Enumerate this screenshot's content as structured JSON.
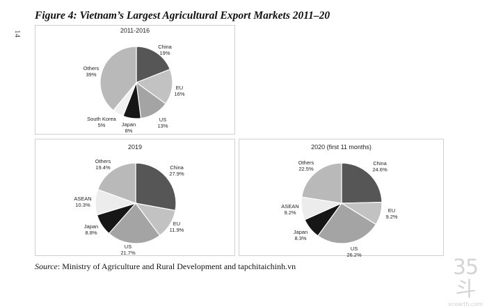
{
  "page": {
    "number": "14",
    "figure_title": "Figure 4: Vietnam’s Largest Agricultural Export Markets 2011–20",
    "source_label": "Source",
    "source_text": ": Ministry of Agriculture and Rural Development and tapchitaichinh.vn"
  },
  "watermark": {
    "main": "35斗",
    "site": "vcearth.com"
  },
  "colors": {
    "China": "#565656",
    "EU": "#c2c2c2",
    "US": "#a4a4a4",
    "Japan": "#161616",
    "South Korea": "#f0f0f0",
    "ASEAN": "#ececec",
    "Others": "#b9b9b9",
    "edge": "#ffffff"
  },
  "chart_data": [
    {
      "type": "pie",
      "title": "2011-2016",
      "slices": [
        {
          "label": "China",
          "value": 19,
          "display": "19%"
        },
        {
          "label": "EU",
          "value": 16,
          "display": "16%"
        },
        {
          "label": "US",
          "value": 13,
          "display": "13%"
        },
        {
          "label": "Japan",
          "value": 8,
          "display": "8%"
        },
        {
          "label": "South Korea",
          "value": 5,
          "display": "5%"
        },
        {
          "label": "Others",
          "value": 39,
          "display": "39%"
        }
      ]
    },
    {
      "type": "pie",
      "title": "2019",
      "slices": [
        {
          "label": "China",
          "value": 27.9,
          "display": "27.9%"
        },
        {
          "label": "EU",
          "value": 11.9,
          "display": "11.9%"
        },
        {
          "label": "US",
          "value": 21.7,
          "display": "21.7%"
        },
        {
          "label": "Japan",
          "value": 8.8,
          "display": "8.8%"
        },
        {
          "label": "ASEAN",
          "value": 10.3,
          "display": "10.3%"
        },
        {
          "label": "Others",
          "value": 19.4,
          "display": "19.4%"
        }
      ]
    },
    {
      "type": "pie",
      "title": "2020 (first 11 months)",
      "slices": [
        {
          "label": "China",
          "value": 24.6,
          "display": "24.6%"
        },
        {
          "label": "EU",
          "value": 9.2,
          "display": "9.2%"
        },
        {
          "label": "US",
          "value": 26.2,
          "display": "26.2%"
        },
        {
          "label": "Japan",
          "value": 8.3,
          "display": "8.3%"
        },
        {
          "label": "ASEAN",
          "value": 9.2,
          "display": "9.2%"
        },
        {
          "label": "Others",
          "value": 22.5,
          "display": "22.5%"
        }
      ]
    }
  ]
}
